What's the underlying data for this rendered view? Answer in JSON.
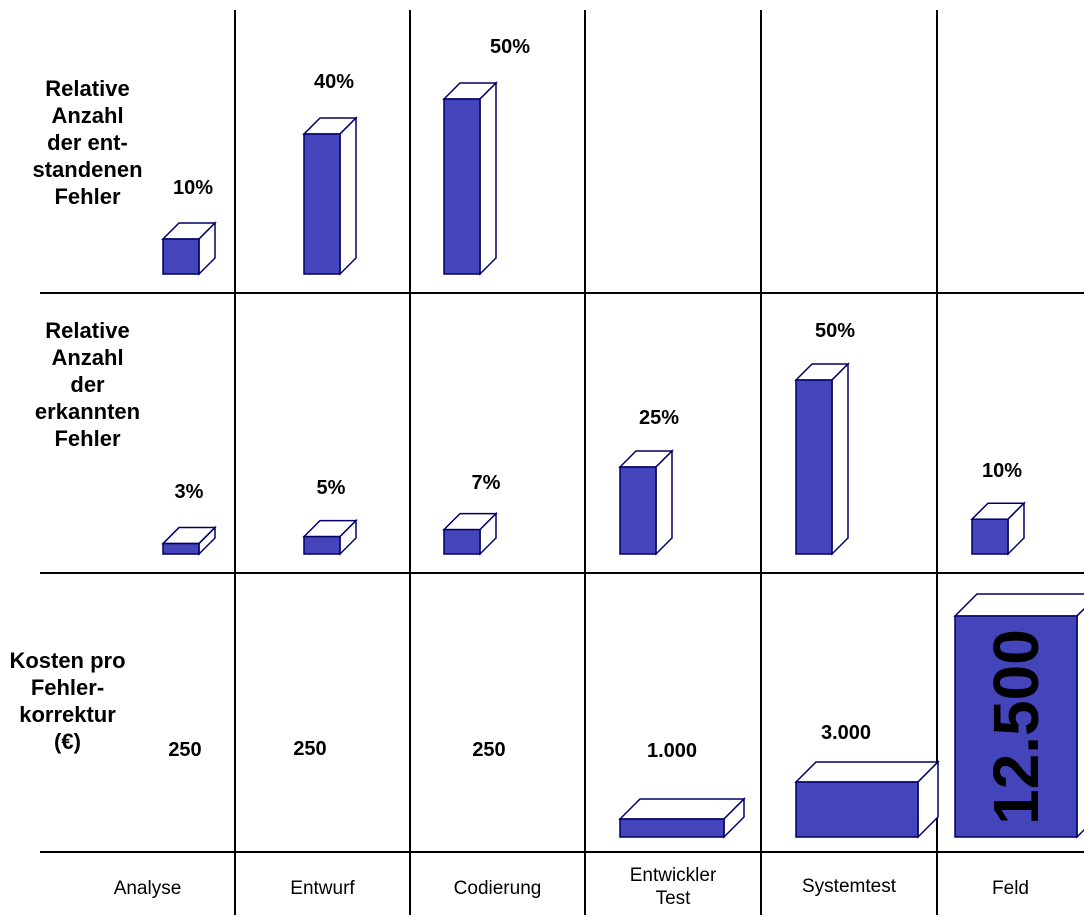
{
  "chart_data": [
    {
      "type": "bar",
      "title": "Relative\nAnzahl\nder ent-\nstandenen\nFehler",
      "categories": [
        "Analyse",
        "Entwurf",
        "Codierung",
        "Entwickler\nTest",
        "Systemtest",
        "Feld"
      ],
      "values": [
        10,
        40,
        50,
        null,
        null,
        null
      ],
      "labels": [
        "10%",
        "40%",
        "50%",
        "",
        "",
        ""
      ],
      "unit": "%"
    },
    {
      "type": "bar",
      "title": "Relative\nAnzahl\nder\nerkannten\nFehler",
      "categories": [
        "Analyse",
        "Entwurf",
        "Codierung",
        "Entwickler\nTest",
        "Systemtest",
        "Feld"
      ],
      "values": [
        3,
        5,
        7,
        25,
        50,
        10
      ],
      "labels": [
        "3%",
        "5%",
        "7%",
        "25%",
        "50%",
        "10%"
      ],
      "unit": "%"
    },
    {
      "type": "bar",
      "title": "Kosten pro\nFehler-\nkorrektur\n(€)",
      "categories": [
        "Analyse",
        "Entwurf",
        "Codierung",
        "Entwickler\nTest",
        "Systemtest",
        "Feld"
      ],
      "values": [
        250,
        250,
        250,
        1000,
        3000,
        12500
      ],
      "labels": [
        "250",
        "250",
        "250",
        "1.000",
        "3.000",
        "12.500"
      ],
      "unit": "€"
    }
  ],
  "colors": {
    "bar_front": "#4444bb",
    "bar_side": "#ffffff",
    "outline": "#000066",
    "grid": "#000000"
  }
}
